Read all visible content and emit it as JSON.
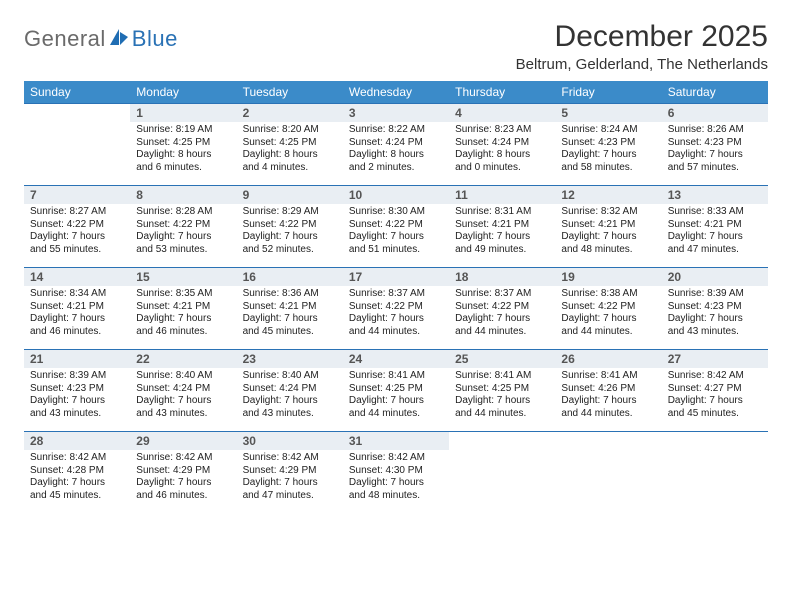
{
  "brand": {
    "name_general": "General",
    "name_blue": "Blue",
    "icon_color": "#1f6db3"
  },
  "title": "December 2025",
  "location": "Beltrum, Gelderland, The Netherlands",
  "colors": {
    "header_bg": "#3b8bc9",
    "header_text": "#ffffff",
    "row_border": "#2a72b5",
    "daynum_bg": "#e9eef3",
    "body_text": "#222222"
  },
  "days_of_week": [
    "Sunday",
    "Monday",
    "Tuesday",
    "Wednesday",
    "Thursday",
    "Friday",
    "Saturday"
  ],
  "weeks": [
    [
      {
        "day": "",
        "sunrise": "",
        "sunset": "",
        "daylight": ""
      },
      {
        "day": "1",
        "sunrise": "Sunrise: 8:19 AM",
        "sunset": "Sunset: 4:25 PM",
        "daylight": "Daylight: 8 hours and 6 minutes."
      },
      {
        "day": "2",
        "sunrise": "Sunrise: 8:20 AM",
        "sunset": "Sunset: 4:25 PM",
        "daylight": "Daylight: 8 hours and 4 minutes."
      },
      {
        "day": "3",
        "sunrise": "Sunrise: 8:22 AM",
        "sunset": "Sunset: 4:24 PM",
        "daylight": "Daylight: 8 hours and 2 minutes."
      },
      {
        "day": "4",
        "sunrise": "Sunrise: 8:23 AM",
        "sunset": "Sunset: 4:24 PM",
        "daylight": "Daylight: 8 hours and 0 minutes."
      },
      {
        "day": "5",
        "sunrise": "Sunrise: 8:24 AM",
        "sunset": "Sunset: 4:23 PM",
        "daylight": "Daylight: 7 hours and 58 minutes."
      },
      {
        "day": "6",
        "sunrise": "Sunrise: 8:26 AM",
        "sunset": "Sunset: 4:23 PM",
        "daylight": "Daylight: 7 hours and 57 minutes."
      }
    ],
    [
      {
        "day": "7",
        "sunrise": "Sunrise: 8:27 AM",
        "sunset": "Sunset: 4:22 PM",
        "daylight": "Daylight: 7 hours and 55 minutes."
      },
      {
        "day": "8",
        "sunrise": "Sunrise: 8:28 AM",
        "sunset": "Sunset: 4:22 PM",
        "daylight": "Daylight: 7 hours and 53 minutes."
      },
      {
        "day": "9",
        "sunrise": "Sunrise: 8:29 AM",
        "sunset": "Sunset: 4:22 PM",
        "daylight": "Daylight: 7 hours and 52 minutes."
      },
      {
        "day": "10",
        "sunrise": "Sunrise: 8:30 AM",
        "sunset": "Sunset: 4:22 PM",
        "daylight": "Daylight: 7 hours and 51 minutes."
      },
      {
        "day": "11",
        "sunrise": "Sunrise: 8:31 AM",
        "sunset": "Sunset: 4:21 PM",
        "daylight": "Daylight: 7 hours and 49 minutes."
      },
      {
        "day": "12",
        "sunrise": "Sunrise: 8:32 AM",
        "sunset": "Sunset: 4:21 PM",
        "daylight": "Daylight: 7 hours and 48 minutes."
      },
      {
        "day": "13",
        "sunrise": "Sunrise: 8:33 AM",
        "sunset": "Sunset: 4:21 PM",
        "daylight": "Daylight: 7 hours and 47 minutes."
      }
    ],
    [
      {
        "day": "14",
        "sunrise": "Sunrise: 8:34 AM",
        "sunset": "Sunset: 4:21 PM",
        "daylight": "Daylight: 7 hours and 46 minutes."
      },
      {
        "day": "15",
        "sunrise": "Sunrise: 8:35 AM",
        "sunset": "Sunset: 4:21 PM",
        "daylight": "Daylight: 7 hours and 46 minutes."
      },
      {
        "day": "16",
        "sunrise": "Sunrise: 8:36 AM",
        "sunset": "Sunset: 4:21 PM",
        "daylight": "Daylight: 7 hours and 45 minutes."
      },
      {
        "day": "17",
        "sunrise": "Sunrise: 8:37 AM",
        "sunset": "Sunset: 4:22 PM",
        "daylight": "Daylight: 7 hours and 44 minutes."
      },
      {
        "day": "18",
        "sunrise": "Sunrise: 8:37 AM",
        "sunset": "Sunset: 4:22 PM",
        "daylight": "Daylight: 7 hours and 44 minutes."
      },
      {
        "day": "19",
        "sunrise": "Sunrise: 8:38 AM",
        "sunset": "Sunset: 4:22 PM",
        "daylight": "Daylight: 7 hours and 44 minutes."
      },
      {
        "day": "20",
        "sunrise": "Sunrise: 8:39 AM",
        "sunset": "Sunset: 4:23 PM",
        "daylight": "Daylight: 7 hours and 43 minutes."
      }
    ],
    [
      {
        "day": "21",
        "sunrise": "Sunrise: 8:39 AM",
        "sunset": "Sunset: 4:23 PM",
        "daylight": "Daylight: 7 hours and 43 minutes."
      },
      {
        "day": "22",
        "sunrise": "Sunrise: 8:40 AM",
        "sunset": "Sunset: 4:24 PM",
        "daylight": "Daylight: 7 hours and 43 minutes."
      },
      {
        "day": "23",
        "sunrise": "Sunrise: 8:40 AM",
        "sunset": "Sunset: 4:24 PM",
        "daylight": "Daylight: 7 hours and 43 minutes."
      },
      {
        "day": "24",
        "sunrise": "Sunrise: 8:41 AM",
        "sunset": "Sunset: 4:25 PM",
        "daylight": "Daylight: 7 hours and 44 minutes."
      },
      {
        "day": "25",
        "sunrise": "Sunrise: 8:41 AM",
        "sunset": "Sunset: 4:25 PM",
        "daylight": "Daylight: 7 hours and 44 minutes."
      },
      {
        "day": "26",
        "sunrise": "Sunrise: 8:41 AM",
        "sunset": "Sunset: 4:26 PM",
        "daylight": "Daylight: 7 hours and 44 minutes."
      },
      {
        "day": "27",
        "sunrise": "Sunrise: 8:42 AM",
        "sunset": "Sunset: 4:27 PM",
        "daylight": "Daylight: 7 hours and 45 minutes."
      }
    ],
    [
      {
        "day": "28",
        "sunrise": "Sunrise: 8:42 AM",
        "sunset": "Sunset: 4:28 PM",
        "daylight": "Daylight: 7 hours and 45 minutes."
      },
      {
        "day": "29",
        "sunrise": "Sunrise: 8:42 AM",
        "sunset": "Sunset: 4:29 PM",
        "daylight": "Daylight: 7 hours and 46 minutes."
      },
      {
        "day": "30",
        "sunrise": "Sunrise: 8:42 AM",
        "sunset": "Sunset: 4:29 PM",
        "daylight": "Daylight: 7 hours and 47 minutes."
      },
      {
        "day": "31",
        "sunrise": "Sunrise: 8:42 AM",
        "sunset": "Sunset: 4:30 PM",
        "daylight": "Daylight: 7 hours and 48 minutes."
      },
      {
        "day": "",
        "sunrise": "",
        "sunset": "",
        "daylight": ""
      },
      {
        "day": "",
        "sunrise": "",
        "sunset": "",
        "daylight": ""
      },
      {
        "day": "",
        "sunrise": "",
        "sunset": "",
        "daylight": ""
      }
    ]
  ]
}
